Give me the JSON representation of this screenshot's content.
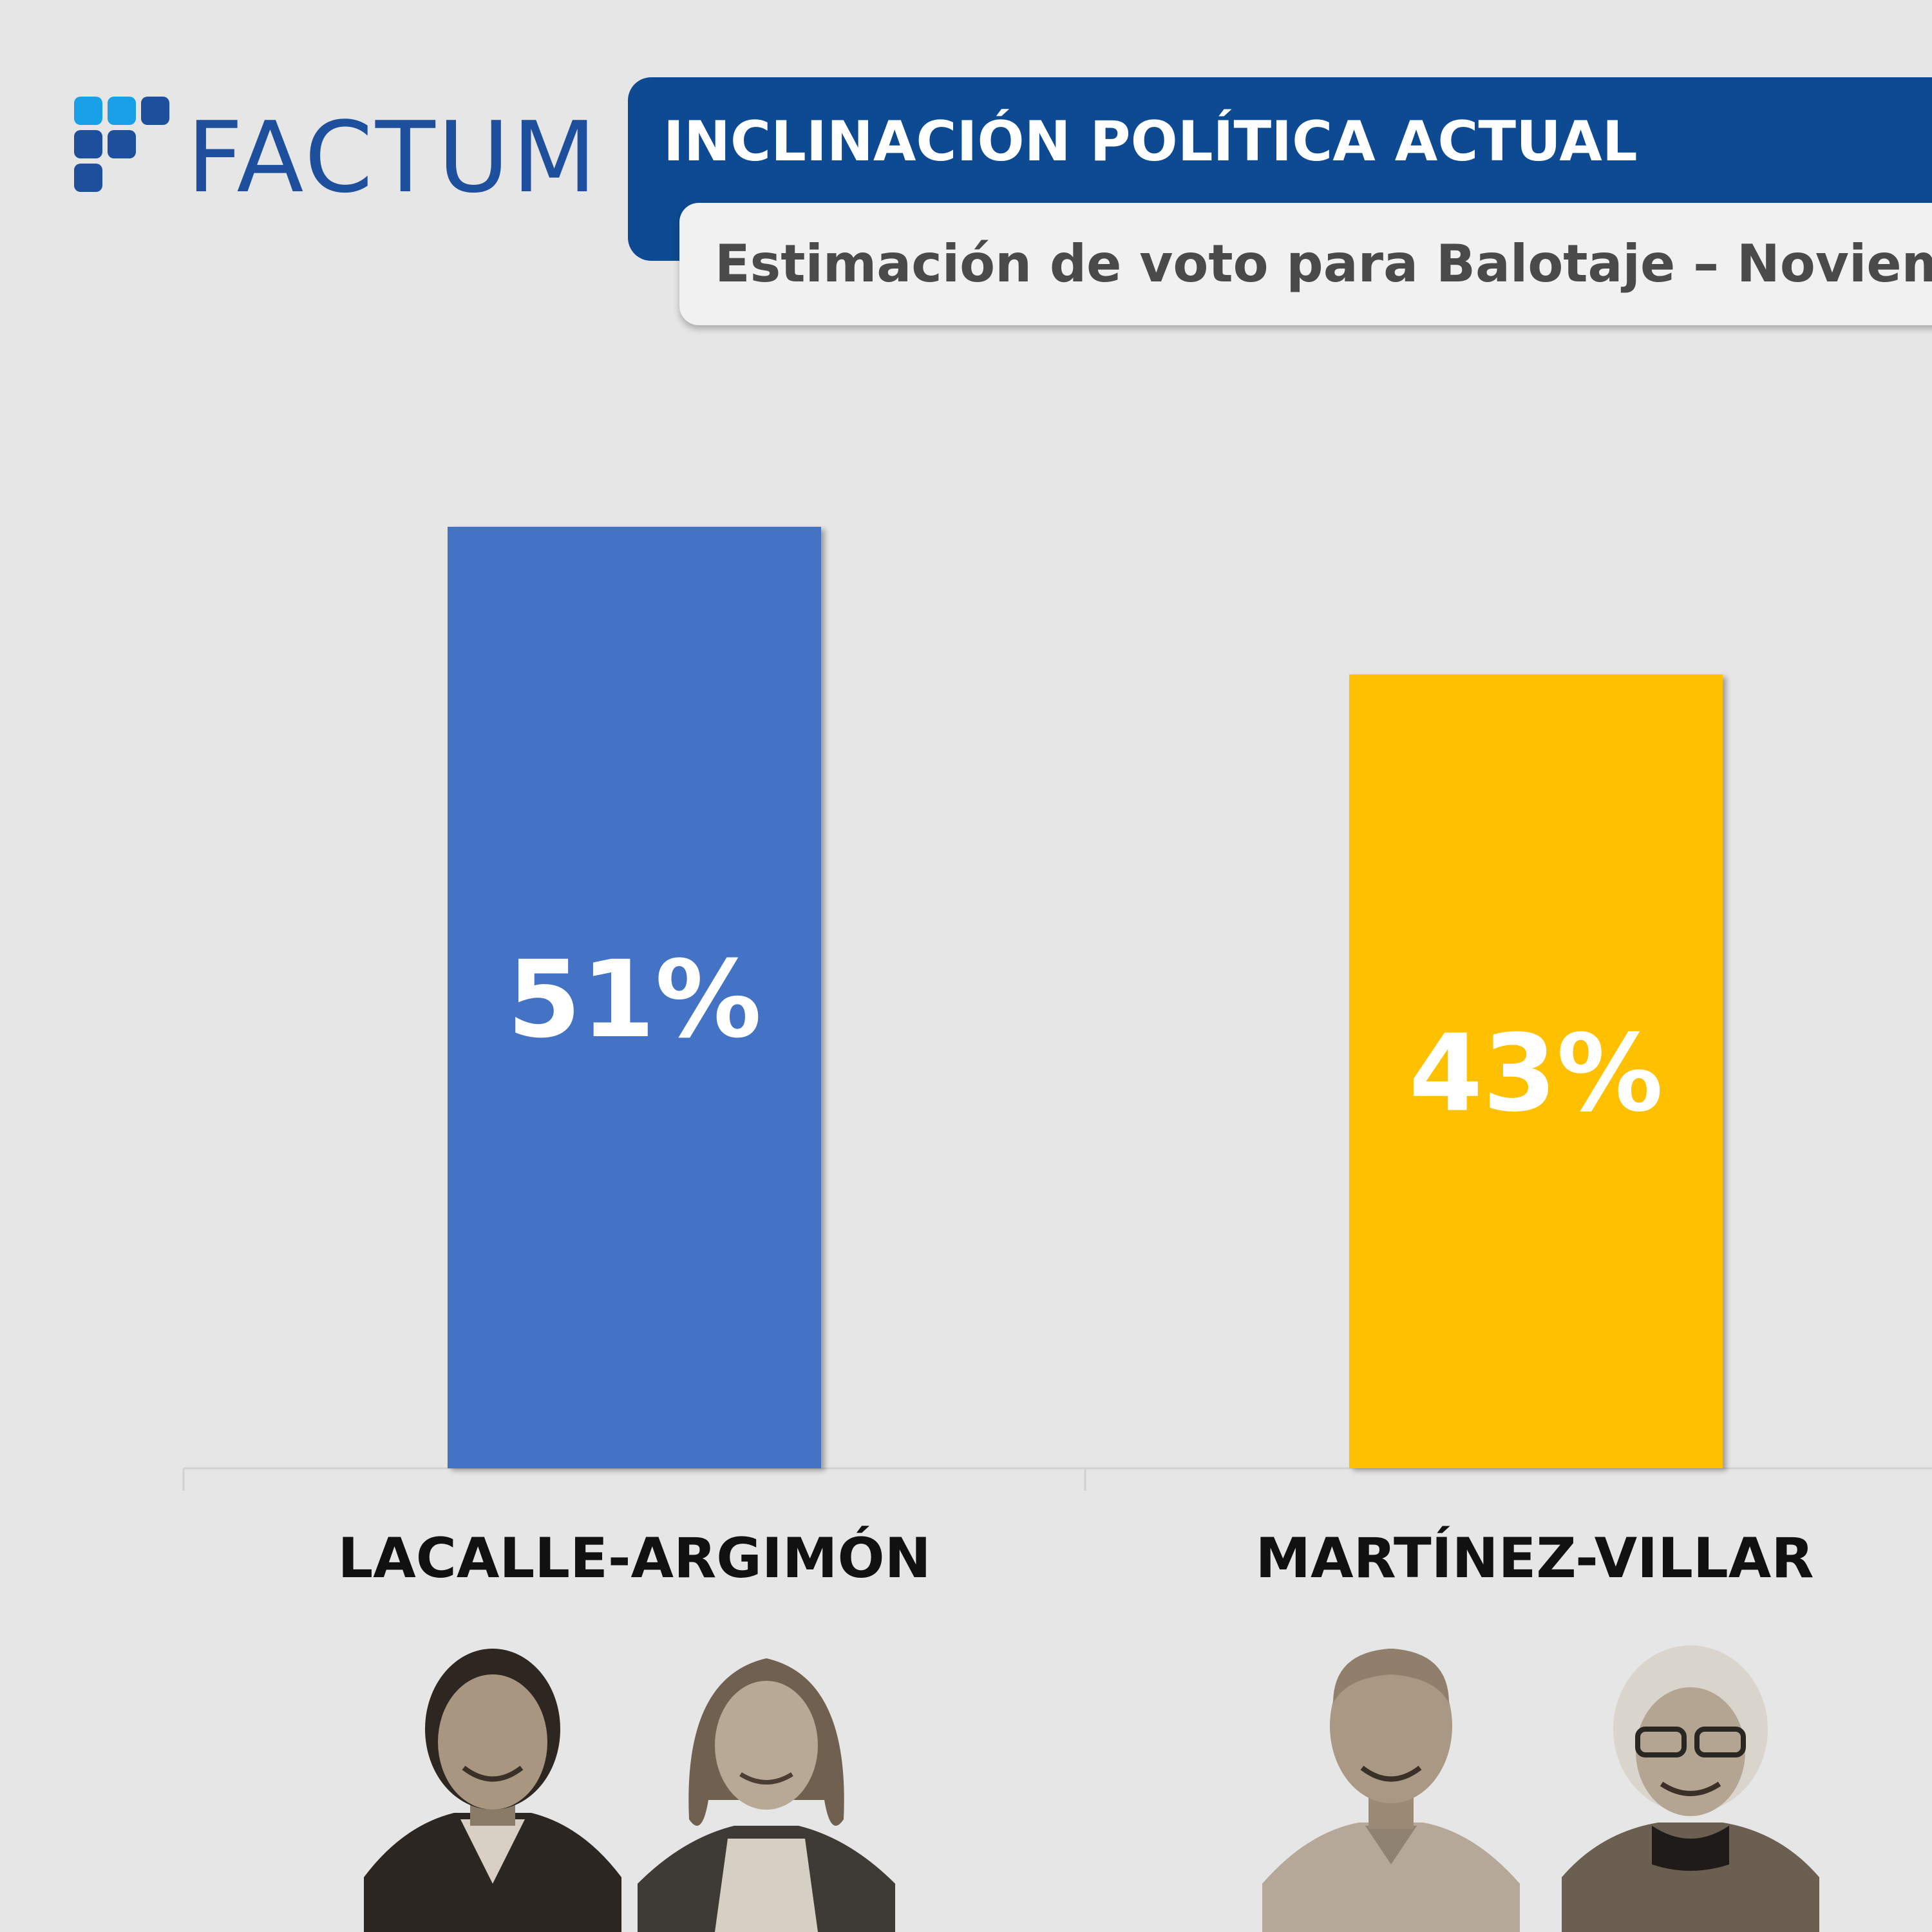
{
  "brand": {
    "name": "FACTUM"
  },
  "header": {
    "title": "INCLINACIÓN POLÍTICA ACTUAL",
    "subtitle": "Estimación de voto para Balotaje – Noviem"
  },
  "colors": {
    "background": "#e7e6e6",
    "title_banner": "#0d4a91",
    "logo_text": "#1e4f9c",
    "logo_light": "#1aa0e6",
    "logo_dark": "#1e4f9c"
  },
  "chart_data": {
    "type": "bar",
    "categories": [
      "LACALLE-ARGIMÓN",
      "MARTÍNEZ-VILLAR"
    ],
    "values": [
      51,
      43
    ],
    "value_labels": [
      "51%",
      "43%"
    ],
    "colors": [
      "#4472c4",
      "#ffc000"
    ],
    "ylim": [
      0,
      60
    ],
    "grid": false,
    "legend": "none"
  },
  "photos": [
    {
      "name": "portrait-photo-1",
      "tone": "grayscale-sepia"
    },
    {
      "name": "portrait-photo-2",
      "tone": "grayscale-sepia"
    },
    {
      "name": "portrait-photo-3",
      "tone": "grayscale-sepia"
    },
    {
      "name": "portrait-photo-4",
      "tone": "grayscale-sepia"
    }
  ]
}
